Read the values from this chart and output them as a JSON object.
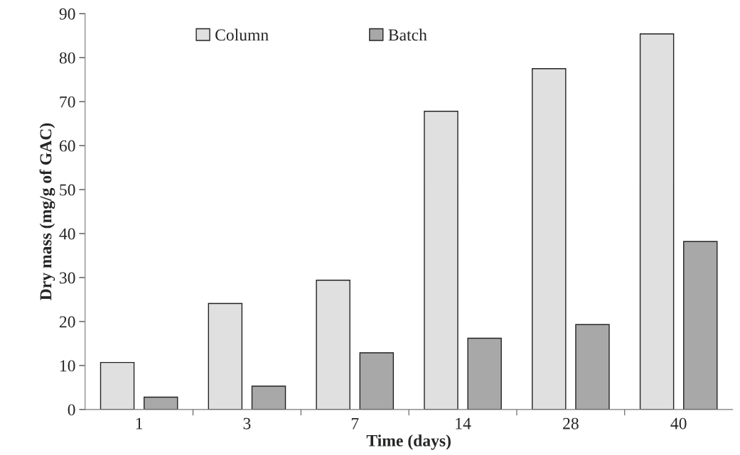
{
  "chart_data": {
    "type": "bar",
    "xlabel": "Time (days)",
    "ylabel": "Dry mass (mg/g of GAC)",
    "categories": [
      "1",
      "3",
      "7",
      "14",
      "28",
      "40"
    ],
    "series": [
      {
        "name": "Column",
        "color": "#e0e0e0",
        "values": [
          10.7,
          24.1,
          29.4,
          67.8,
          77.5,
          85.4
        ]
      },
      {
        "name": "Batch",
        "color": "#a8a8a8",
        "values": [
          2.8,
          5.3,
          12.9,
          16.2,
          19.3,
          38.2
        ]
      }
    ],
    "ylim": [
      0,
      90
    ],
    "yticks": [
      0,
      10,
      20,
      30,
      40,
      50,
      60,
      70,
      80,
      90
    ],
    "grid": false,
    "legend": "top"
  }
}
